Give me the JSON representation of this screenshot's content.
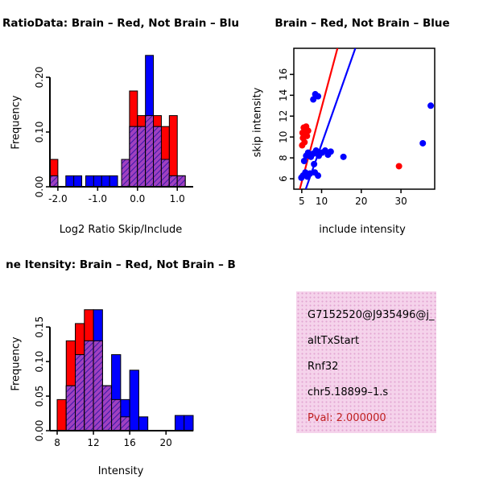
{
  "figure": {
    "bg": "#ffffff"
  },
  "chart_data": [
    {
      "id": "ratio_hist",
      "type": "bar",
      "title": "RatioData: Brain – Red, Not Brain – Blu",
      "xlabel": "Log2 Ratio Skip/Include",
      "ylabel": "Frequency",
      "xlim": [
        -2.2,
        1.4
      ],
      "ylim": [
        0,
        0.25
      ],
      "xticks": [
        {
          "v": -2.0,
          "t": "-2.0"
        },
        {
          "v": -1.0,
          "t": "-1.0"
        },
        {
          "v": 0.0,
          "t": "0.0"
        },
        {
          "v": 1.0,
          "t": "1.0"
        }
      ],
      "yticks": [
        {
          "v": 0.0,
          "t": "0.00"
        },
        {
          "v": 0.1,
          "t": "0.10"
        },
        {
          "v": 0.2,
          "t": "0.20"
        }
      ],
      "bin_width": 0.2,
      "colors": {
        "red": "#ff0000",
        "blue": "#0000ff",
        "overlap": "#a040c0",
        "overlap_line": "#3818a8"
      },
      "bins": [
        {
          "x": -2.2,
          "red": 0.05,
          "blue": 0.02
        },
        {
          "x": -1.8,
          "red": 0,
          "blue": 0.02
        },
        {
          "x": -1.6,
          "red": 0,
          "blue": 0.02
        },
        {
          "x": -1.3,
          "red": 0,
          "blue": 0.02
        },
        {
          "x": -1.1,
          "red": 0,
          "blue": 0.02
        },
        {
          "x": -0.9,
          "red": 0,
          "blue": 0.02
        },
        {
          "x": -0.7,
          "red": 0,
          "blue": 0.02
        },
        {
          "x": -0.4,
          "red": 0.05,
          "blue": 0.05
        },
        {
          "x": -0.2,
          "red": 0.175,
          "blue": 0.11
        },
        {
          "x": 0.0,
          "red": 0.13,
          "blue": 0.11
        },
        {
          "x": 0.2,
          "red": 0.13,
          "blue": 0.24
        },
        {
          "x": 0.4,
          "red": 0.13,
          "blue": 0.11
        },
        {
          "x": 0.6,
          "red": 0.11,
          "blue": 0.05
        },
        {
          "x": 0.8,
          "red": 0.13,
          "blue": 0.02
        },
        {
          "x": 1.0,
          "red": 0.02,
          "blue": 0.02
        }
      ]
    },
    {
      "id": "scatter",
      "type": "scatter",
      "title": "Brain – Red, Not Brain – Blue",
      "xlabel": "include intensity",
      "ylabel": "skip intensity",
      "xlim": [
        3,
        38.5
      ],
      "ylim": [
        5,
        18.5
      ],
      "xticks": [
        {
          "v": 5,
          "t": "5"
        },
        {
          "v": 10,
          "t": "10"
        },
        {
          "v": 20,
          "t": "20"
        },
        {
          "v": 30,
          "t": "30"
        }
      ],
      "yticks": [
        {
          "v": 6,
          "t": "6"
        },
        {
          "v": 8,
          "t": "8"
        },
        {
          "v": 10,
          "t": "10"
        },
        {
          "v": 12,
          "t": "12"
        },
        {
          "v": 14,
          "t": "14"
        },
        {
          "v": 16,
          "t": "16"
        }
      ],
      "series": [
        {
          "name": "brain",
          "color": "#ff0000",
          "points": [
            [
              5.2,
              10.4
            ],
            [
              5.5,
              10.9
            ],
            [
              5.9,
              10.3
            ],
            [
              6.1,
              11.0
            ],
            [
              5.3,
              9.9
            ],
            [
              6.3,
              10.1
            ],
            [
              5.7,
              9.5
            ],
            [
              5.1,
              9.2
            ],
            [
              6.6,
              10.6
            ],
            [
              29.5,
              7.2
            ]
          ],
          "line": {
            "x1": 4.5,
            "y1": 5.0,
            "x2": 14.0,
            "y2": 18.5
          }
        },
        {
          "name": "not_brain",
          "color": "#0000ff",
          "points": [
            [
              4.9,
              6.1
            ],
            [
              5.3,
              6.3
            ],
            [
              5.9,
              6.6
            ],
            [
              6.4,
              6.2
            ],
            [
              7.1,
              6.5
            ],
            [
              8.3,
              6.6
            ],
            [
              9.1,
              6.3
            ],
            [
              5.6,
              7.7
            ],
            [
              6.1,
              8.2
            ],
            [
              6.6,
              8.5
            ],
            [
              7.3,
              8.1
            ],
            [
              7.9,
              8.4
            ],
            [
              8.6,
              8.7
            ],
            [
              9.3,
              8.2
            ],
            [
              10.1,
              8.5
            ],
            [
              10.9,
              8.7
            ],
            [
              11.6,
              8.3
            ],
            [
              12.3,
              8.6
            ],
            [
              8.1,
              7.4
            ],
            [
              15.5,
              8.1
            ],
            [
              7.9,
              13.6
            ],
            [
              8.4,
              14.1
            ],
            [
              9.1,
              13.9
            ],
            [
              37.5,
              13.0
            ],
            [
              35.5,
              9.4
            ]
          ],
          "line": {
            "x1": 6.0,
            "y1": 5.0,
            "x2": 18.5,
            "y2": 18.5
          }
        }
      ]
    },
    {
      "id": "intensity_hist",
      "type": "bar",
      "title": "ne Itensity: Brain – Red, Not Brain – B",
      "xlabel": "Intensity",
      "ylabel": "Frequency",
      "xlim": [
        7.2,
        23
      ],
      "ylim": [
        0,
        0.198
      ],
      "xticks": [
        {
          "v": 8,
          "t": "8"
        },
        {
          "v": 12,
          "t": "12"
        },
        {
          "v": 16,
          "t": "16"
        },
        {
          "v": 20,
          "t": "20"
        }
      ],
      "yticks": [
        {
          "v": 0.0,
          "t": "0.00"
        },
        {
          "v": 0.05,
          "t": "0.05"
        },
        {
          "v": 0.1,
          "t": "0.10"
        },
        {
          "v": 0.15,
          "t": "0.15"
        }
      ],
      "bin_width": 1,
      "colors": {
        "red": "#ff0000",
        "blue": "#0000ff",
        "overlap": "#a040c0",
        "overlap_line": "#3818a8"
      },
      "bins": [
        {
          "x": 8,
          "red": 0.045,
          "blue": 0
        },
        {
          "x": 9,
          "red": 0.13,
          "blue": 0.065
        },
        {
          "x": 10,
          "red": 0.155,
          "blue": 0.11
        },
        {
          "x": 11,
          "red": 0.175,
          "blue": 0.13
        },
        {
          "x": 12,
          "red": 0.13,
          "blue": 0.175
        },
        {
          "x": 13,
          "red": 0.065,
          "blue": 0.065
        },
        {
          "x": 14,
          "red": 0.045,
          "blue": 0.11
        },
        {
          "x": 15,
          "red": 0.02,
          "blue": 0.045
        },
        {
          "x": 16,
          "red": 0,
          "blue": 0.0875
        },
        {
          "x": 17,
          "red": 0,
          "blue": 0.02
        },
        {
          "x": 21,
          "red": 0,
          "blue": 0.022
        },
        {
          "x": 22,
          "red": 0,
          "blue": 0.022
        }
      ]
    }
  ],
  "info_box": {
    "bg": "#f5d3eb",
    "dot": "#e2a6d2",
    "lines": [
      {
        "text": "G7152520@J935496@j_",
        "color": "#000000"
      },
      {
        "text": "altTxStart",
        "color": "#000000"
      },
      {
        "text": "Rnf32",
        "color": "#000000"
      },
      {
        "text": "chr5.18899–1.s",
        "color": "#000000"
      },
      {
        "text": "Pval: 2.000000",
        "color": "#c02020"
      }
    ]
  }
}
